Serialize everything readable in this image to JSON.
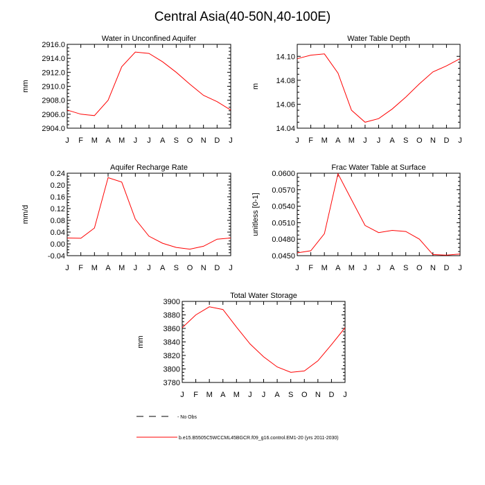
{
  "title": "Central Asia(40-50N,40-100E)",
  "months": [
    "J",
    "F",
    "M",
    "A",
    "M",
    "J",
    "J",
    "A",
    "S",
    "O",
    "N",
    "D",
    "J"
  ],
  "colors": {
    "model": "#ff0000",
    "axis": "#000000"
  },
  "legend": {
    "obs_label": "- No Obs",
    "model_label": "b.e15.B5505C5WCCML45BGCR.f09_g16.control.EM1-20 (yrs 2011-2030)"
  },
  "chart_data": [
    {
      "id": "wa",
      "type": "line",
      "title": "Water in Unconfined Aquifer",
      "ylabel": "mm",
      "xlabel": "",
      "ylim": [
        2904.0,
        2916.0
      ],
      "yticks": [
        2904.0,
        2906.0,
        2908.0,
        2910.0,
        2912.0,
        2914.0,
        2916.0
      ],
      "ytick_labels": [
        "2904.0",
        "2906.0",
        "2908.0",
        "2910.0",
        "2912.0",
        "2914.0",
        "2916.0"
      ],
      "series": [
        {
          "name": "model",
          "values": [
            2906.6,
            2906.0,
            2905.8,
            2908.0,
            2912.8,
            2914.9,
            2914.7,
            2913.5,
            2912.0,
            2910.3,
            2908.7,
            2907.8,
            2906.6
          ]
        }
      ]
    },
    {
      "id": "wtd",
      "type": "line",
      "title": "Water Table Depth",
      "ylabel": "m",
      "xlabel": "",
      "ylim": [
        14.04,
        14.11
      ],
      "yticks": [
        14.04,
        14.06,
        14.08,
        14.1
      ],
      "ytick_labels": [
        "14.04",
        "14.06",
        "14.08",
        "14.10"
      ],
      "series": [
        {
          "name": "model",
          "values": [
            14.098,
            14.101,
            14.102,
            14.086,
            14.055,
            14.045,
            14.048,
            14.056,
            14.066,
            14.077,
            14.087,
            14.092,
            14.098
          ]
        }
      ]
    },
    {
      "id": "arr",
      "type": "line",
      "title": "Aquifer Recharge Rate",
      "ylabel": "mm/d",
      "xlabel": "",
      "ylim": [
        -0.04,
        0.24
      ],
      "yticks": [
        -0.04,
        0.0,
        0.04,
        0.08,
        0.12,
        0.16,
        0.2,
        0.24
      ],
      "ytick_labels": [
        "-0.04",
        "0.00",
        "0.04",
        "0.08",
        "0.12",
        "0.16",
        "0.20",
        "0.24"
      ],
      "series": [
        {
          "name": "model",
          "values": [
            0.02,
            0.019,
            0.054,
            0.225,
            0.21,
            0.084,
            0.026,
            0.002,
            -0.012,
            -0.018,
            -0.008,
            0.016,
            0.02
          ]
        }
      ]
    },
    {
      "id": "fwt",
      "type": "line",
      "title": "Frac Water Table at Surface",
      "ylabel": "unitless [0-1]",
      "xlabel": "",
      "ylim": [
        0.045,
        0.06
      ],
      "yticks": [
        0.045,
        0.048,
        0.051,
        0.054,
        0.057,
        0.06
      ],
      "ytick_labels": [
        "0.0450",
        "0.0480",
        "0.0510",
        "0.0540",
        "0.0570",
        "0.0600"
      ],
      "series": [
        {
          "name": "model",
          "values": [
            0.0455,
            0.0459,
            0.049,
            0.0599,
            0.0552,
            0.0505,
            0.0492,
            0.0496,
            0.0494,
            0.048,
            0.0452,
            0.0451,
            0.0453
          ]
        }
      ]
    },
    {
      "id": "tws",
      "type": "line",
      "title": "Total Water Storage",
      "ylabel": "mm",
      "xlabel": "",
      "ylim": [
        3780,
        3900
      ],
      "yticks": [
        3780,
        3800,
        3820,
        3840,
        3860,
        3880,
        3900
      ],
      "ytick_labels": [
        "3780",
        "3800",
        "3820",
        "3840",
        "3860",
        "3880",
        "3900"
      ],
      "series": [
        {
          "name": "model",
          "values": [
            3861,
            3880,
            3892,
            3888,
            3862,
            3837,
            3818,
            3803,
            3795,
            3797,
            3812,
            3836,
            3861
          ]
        }
      ]
    }
  ]
}
